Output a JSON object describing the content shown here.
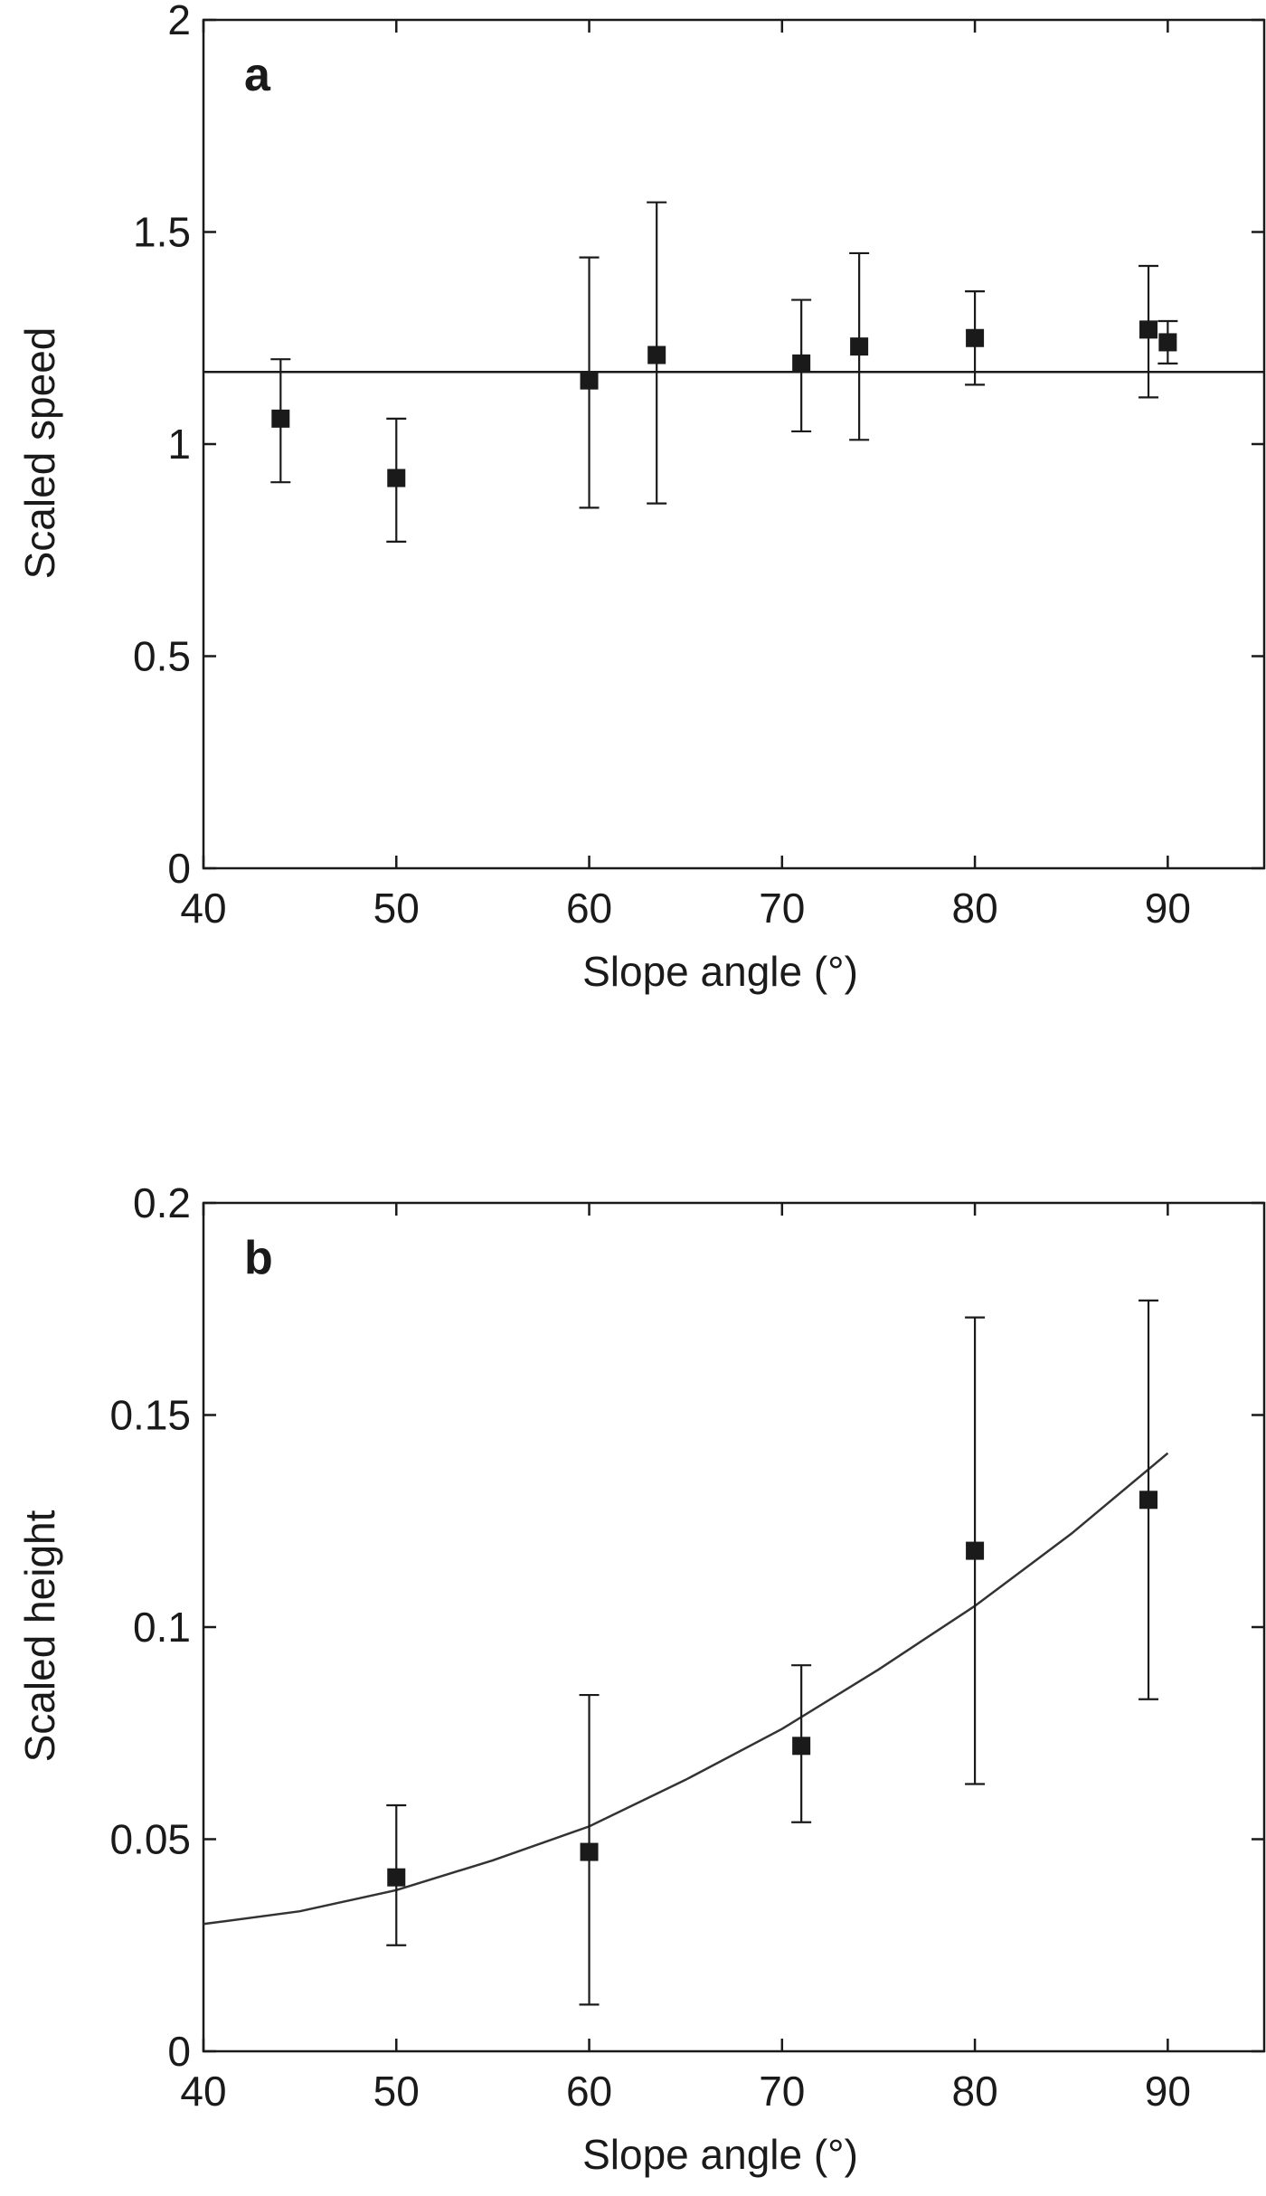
{
  "chart_data": [
    {
      "type": "scatter",
      "panel_label": "a",
      "xlabel": "Slope angle (°)",
      "ylabel": "Scaled speed",
      "xlim": [
        40,
        95
      ],
      "ylim": [
        0,
        2
      ],
      "xticks": [
        40,
        50,
        60,
        70,
        80,
        90
      ],
      "yticks": [
        0,
        0.5,
        1,
        1.5,
        2
      ],
      "xtick_labels": [
        "40",
        "50",
        "60",
        "70",
        "80",
        "90"
      ],
      "ytick_labels": [
        "0",
        "0.5",
        "1",
        "1.5",
        "2"
      ],
      "grid": false,
      "points": [
        {
          "x": 44,
          "y": 1.06,
          "err_low": 0.91,
          "err_high": 1.2
        },
        {
          "x": 50,
          "y": 0.92,
          "err_low": 0.77,
          "err_high": 1.06
        },
        {
          "x": 60,
          "y": 1.15,
          "err_low": 0.85,
          "err_high": 1.44
        },
        {
          "x": 63.5,
          "y": 1.21,
          "err_low": 0.86,
          "err_high": 1.57
        },
        {
          "x": 71,
          "y": 1.19,
          "err_low": 1.03,
          "err_high": 1.34
        },
        {
          "x": 74,
          "y": 1.23,
          "err_low": 1.01,
          "err_high": 1.45
        },
        {
          "x": 80,
          "y": 1.25,
          "err_low": 1.14,
          "err_high": 1.36
        },
        {
          "x": 89,
          "y": 1.27,
          "err_low": 1.11,
          "err_high": 1.42
        },
        {
          "x": 90,
          "y": 1.24,
          "err_low": 1.19,
          "err_high": 1.29
        }
      ],
      "fit": {
        "kind": "horizontal",
        "y": 1.17
      }
    },
    {
      "type": "scatter",
      "panel_label": "b",
      "xlabel": "Slope angle (°)",
      "ylabel": "Scaled height",
      "xlim": [
        40,
        95
      ],
      "ylim": [
        0,
        0.2
      ],
      "xticks": [
        40,
        50,
        60,
        70,
        80,
        90
      ],
      "yticks": [
        0,
        0.05,
        0.1,
        0.15,
        0.2
      ],
      "xtick_labels": [
        "40",
        "50",
        "60",
        "70",
        "80",
        "90"
      ],
      "ytick_labels": [
        "0",
        "0.05",
        "0.1",
        "0.15",
        "0.2"
      ],
      "grid": false,
      "points": [
        {
          "x": 50,
          "y": 0.041,
          "err_low": 0.025,
          "err_high": 0.058
        },
        {
          "x": 60,
          "y": 0.047,
          "err_low": 0.011,
          "err_high": 0.084
        },
        {
          "x": 71,
          "y": 0.072,
          "err_low": 0.054,
          "err_high": 0.091
        },
        {
          "x": 80,
          "y": 0.118,
          "err_low": 0.063,
          "err_high": 0.173
        },
        {
          "x": 89,
          "y": 0.13,
          "err_low": 0.083,
          "err_high": 0.177
        }
      ],
      "fit": {
        "kind": "curve",
        "x": [
          40,
          45,
          50,
          55,
          60,
          65,
          70,
          75,
          80,
          85,
          90
        ],
        "y": [
          0.03,
          0.033,
          0.038,
          0.045,
          0.053,
          0.064,
          0.076,
          0.09,
          0.105,
          0.122,
          0.141
        ]
      }
    }
  ]
}
